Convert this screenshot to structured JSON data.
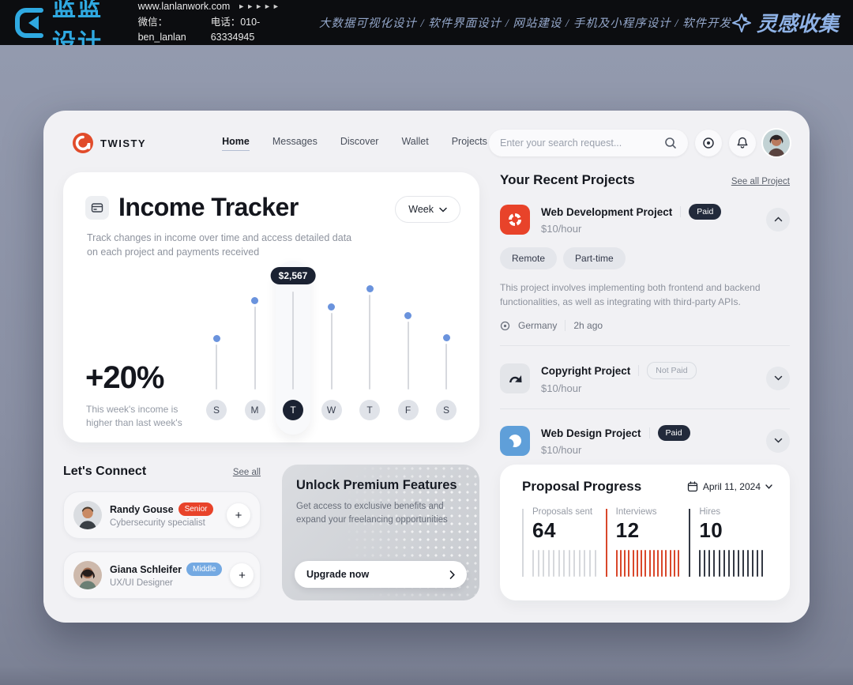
{
  "banner": {
    "logo_text": "蓝蓝设计",
    "website": "www.lanlanwork.com",
    "arrows": "►►►►►",
    "wechat": "微信：ben_lanlan",
    "phone": "电话：010-63334945",
    "services": "大数据可视化设计 / 软件界面设计 / 网站建设 / 手机及小程序设计 / 软件开发",
    "collect": "灵感收集",
    "accent_color": "#2fa9e1"
  },
  "nav": {
    "brand": "TWISTY",
    "items": [
      {
        "label": "Home",
        "active": true
      },
      {
        "label": "Messages",
        "active": false
      },
      {
        "label": "Discover",
        "active": false
      },
      {
        "label": "Wallet",
        "active": false
      },
      {
        "label": "Projects",
        "active": false
      }
    ],
    "search_placeholder": "Enter your search request...",
    "icons": [
      "search-icon",
      "target-icon",
      "bell-icon",
      "avatar"
    ]
  },
  "income": {
    "title": "Income Tracker",
    "subtitle": "Track changes in income over time and access detailed data on each project and payments received",
    "period": "Week",
    "change": "+20%",
    "change_note_line1": "This week's income is",
    "change_note_line2": "higher than last week's"
  },
  "chart_data": [
    {
      "type": "bar",
      "title": "Income Tracker weekly income",
      "categories": [
        "S",
        "M",
        "T",
        "W",
        "T",
        "F",
        "S"
      ],
      "values": [
        46,
        85,
        100,
        78,
        97,
        69,
        47
      ],
      "ylim": [
        0,
        100
      ],
      "active_index": 2,
      "active_label": "$2,567",
      "dot_color": "#6a93dd",
      "active_color": "#1b2232",
      "legend": "none",
      "grid": false
    },
    {
      "type": "bar",
      "title": "Proposal Progress",
      "date": "April 11, 2024",
      "categories": [
        "Proposals sent",
        "Interviews",
        "Hires"
      ],
      "values": [
        64,
        12,
        10
      ],
      "display_values": [
        "64",
        "12",
        "10"
      ],
      "colors": [
        "#d6d8dc",
        "#d9472b",
        "#343944"
      ],
      "tick_counts": [
        13,
        16,
        14
      ],
      "legend": "none",
      "grid": false
    }
  ],
  "projects": {
    "title": "Your Recent Projects",
    "see_all": "See all Project",
    "items": [
      {
        "name": "Web Development Project",
        "rate": "$10/hour",
        "badge": "Paid",
        "badge_style": "dark",
        "icon": "refresh-circle-icon",
        "icon_bg": "#e8432a",
        "expanded": true,
        "chevron": "up",
        "tags": [
          "Remote",
          "Part-time"
        ],
        "description": "This project involves implementing both frontend and backend functionalities, as well as integrating with third-party APIs.",
        "location": "Germany",
        "time": "2h ago"
      },
      {
        "name": "Copyright Project",
        "rate": "$10/hour",
        "badge": "Not Paid",
        "badge_style": "light",
        "icon": "bent-arrow-icon",
        "icon_bg": "#e3e5e9",
        "expanded": false,
        "chevron": "down"
      },
      {
        "name": "Web Design Project",
        "rate": "$10/hour",
        "badge": "Paid",
        "badge_style": "dark",
        "icon": "crescent-circle-icon",
        "icon_bg": "#5f9fd9",
        "expanded": false,
        "chevron": "down"
      }
    ]
  },
  "connect": {
    "title": "Let's Connect",
    "see_all": "See all",
    "people": [
      {
        "name": "Randy Gouse",
        "badge": "Senior",
        "badge_color": "#e8432a",
        "role": "Cybersecurity specialist"
      },
      {
        "name": "Giana Schleifer",
        "badge": "Middle",
        "badge_color": "#74a9e2",
        "role": "UX/UI Designer"
      }
    ]
  },
  "premium": {
    "title": "Unlock Premium Features",
    "subtitle": "Get access to exclusive benefits and expand your freelancing opportunities",
    "button": "Upgrade now"
  },
  "proposal": {
    "title": "Proposal Progress",
    "date": "April 11, 2024"
  }
}
